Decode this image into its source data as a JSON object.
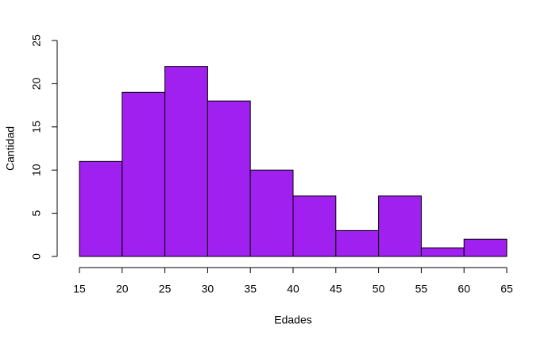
{
  "chart_data": {
    "type": "histogram",
    "xlabel": "Edades",
    "ylabel": "Cantidad",
    "bins": [
      15,
      20,
      25,
      30,
      35,
      40,
      45,
      50,
      55,
      60,
      65
    ],
    "values": [
      11,
      19,
      22,
      18,
      10,
      7,
      3,
      7,
      1,
      2
    ],
    "color": "#a020f0",
    "xlim": [
      15,
      65
    ],
    "xticks": [
      15,
      20,
      25,
      30,
      35,
      40,
      45,
      50,
      55,
      60,
      65
    ],
    "ylim": [
      0,
      25
    ],
    "yticks": [
      0,
      5,
      10,
      15,
      20,
      25
    ]
  }
}
